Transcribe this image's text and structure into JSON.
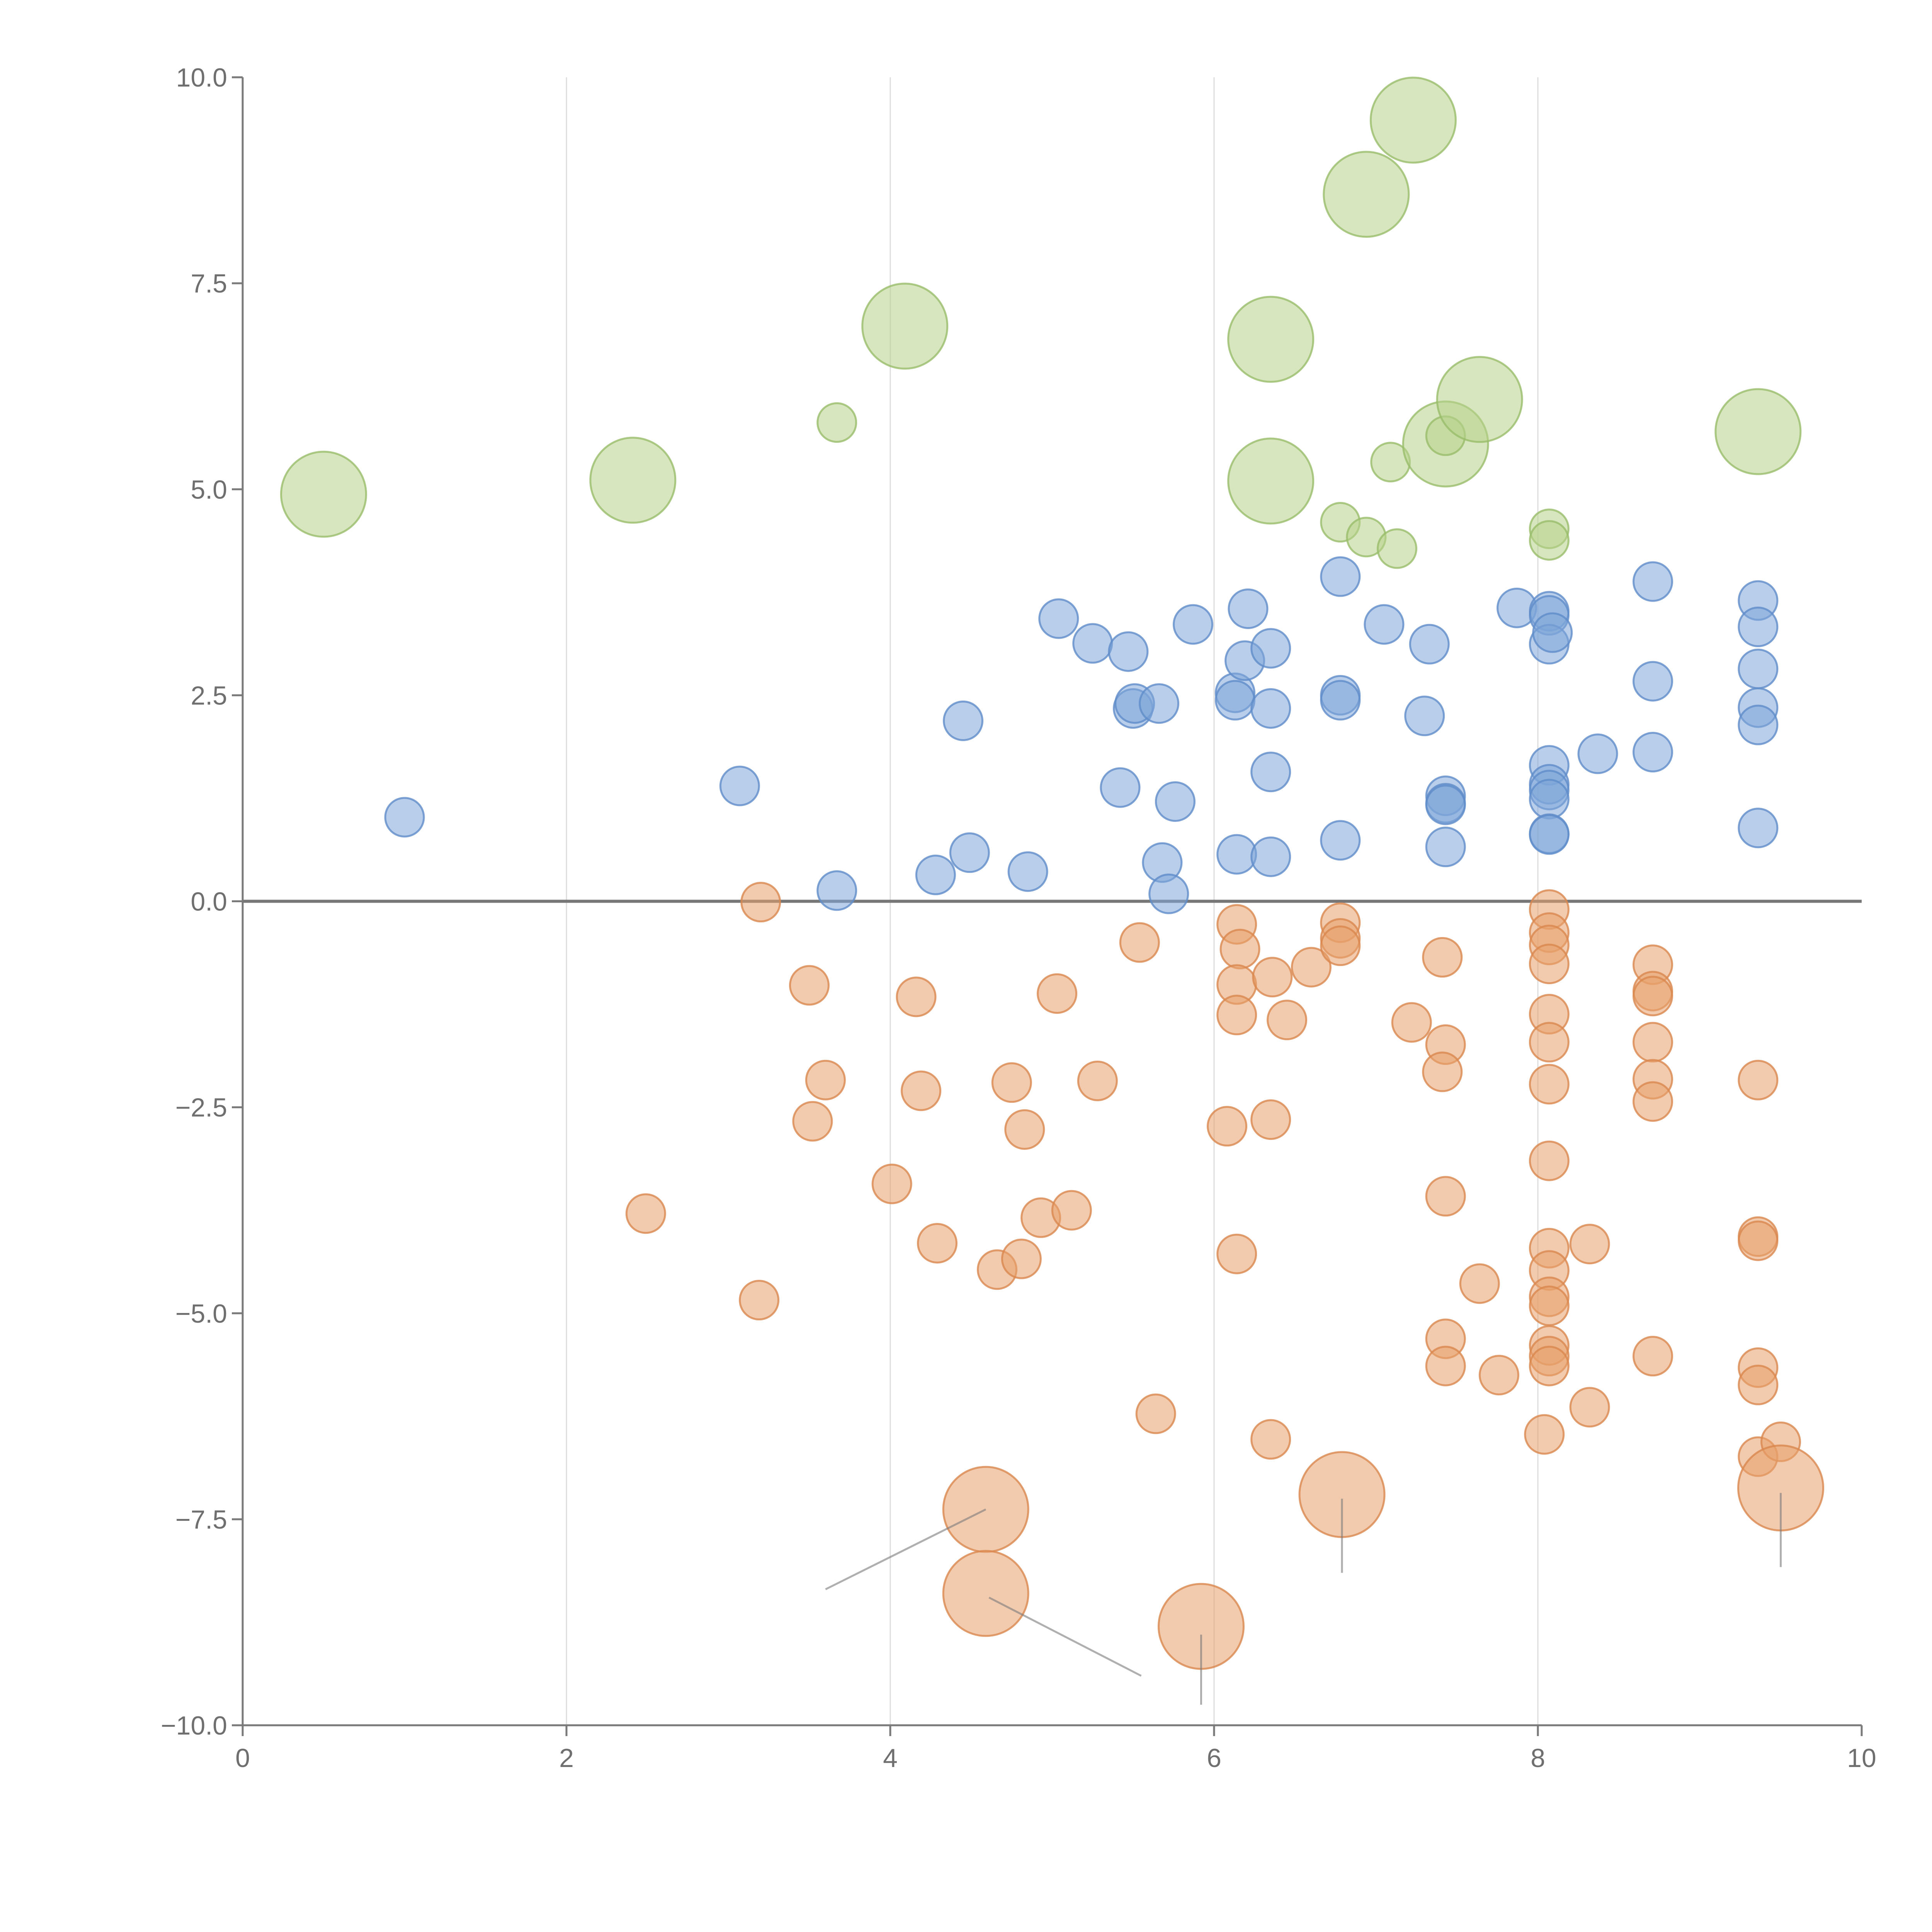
{
  "chart_data": {
    "type": "scatter",
    "title": "",
    "xlabel": "",
    "ylabel": "",
    "xlim": [
      0,
      10
    ],
    "ylim": [
      -10,
      10
    ],
    "xticks": [
      0,
      2,
      4,
      6,
      8,
      10
    ],
    "xtick_labels": [
      "0",
      "2",
      "4",
      "6",
      "8",
      "10"
    ],
    "yticks": [
      -10,
      -7.5,
      -5,
      -2.5,
      0,
      2.5,
      5,
      7.5,
      10
    ],
    "ytick_labels": [
      "−10.0",
      "−7.5",
      "−5.0",
      "−2.5",
      "0.0",
      "2.5",
      "5.0",
      "7.5",
      "10.0"
    ],
    "vertical_gridlines": [
      2,
      4,
      6,
      8
    ],
    "zero_line": 0,
    "colors": {
      "blue": "#7ea6d8",
      "blue_edge": "#5f8cc9",
      "orange": "#e8a06b",
      "orange_edge": "#d9874d",
      "green": "#b6d18b",
      "green_edge": "#98bd6a",
      "grid": "#dcdcdc",
      "axis": "#7a7a7a"
    },
    "bubble_sizes": {
      "small": 1,
      "medium": 1.6,
      "large": 2.2
    },
    "series": [
      {
        "name": "blue",
        "color_key": "blue",
        "points": [
          {
            "x": 1.0,
            "y": 1.02,
            "s": 1
          },
          {
            "x": 3.07,
            "y": 1.4,
            "s": 1
          },
          {
            "x": 3.67,
            "y": 0.13,
            "s": 1
          },
          {
            "x": 4.28,
            "y": 0.32,
            "s": 1
          },
          {
            "x": 4.45,
            "y": 2.19,
            "s": 1
          },
          {
            "x": 4.49,
            "y": 0.59,
            "s": 1
          },
          {
            "x": 4.85,
            "y": 0.36,
            "s": 1
          },
          {
            "x": 5.04,
            "y": 3.43,
            "s": 1
          },
          {
            "x": 5.25,
            "y": 3.13,
            "s": 1
          },
          {
            "x": 5.42,
            "y": 1.38,
            "s": 1
          },
          {
            "x": 5.47,
            "y": 3.03,
            "s": 1
          },
          {
            "x": 5.5,
            "y": 2.34,
            "s": 1
          },
          {
            "x": 5.51,
            "y": 2.4,
            "s": 1
          },
          {
            "x": 5.66,
            "y": 2.4,
            "s": 1
          },
          {
            "x": 5.68,
            "y": 0.47,
            "s": 1
          },
          {
            "x": 5.72,
            "y": 0.09,
            "s": 1
          },
          {
            "x": 5.76,
            "y": 1.21,
            "s": 1
          },
          {
            "x": 5.87,
            "y": 3.36,
            "s": 1
          },
          {
            "x": 6.13,
            "y": 2.53,
            "s": 1
          },
          {
            "x": 6.13,
            "y": 2.44,
            "s": 1
          },
          {
            "x": 6.14,
            "y": 0.57,
            "s": 1
          },
          {
            "x": 6.19,
            "y": 2.92,
            "s": 1
          },
          {
            "x": 6.21,
            "y": 3.55,
            "s": 1
          },
          {
            "x": 6.35,
            "y": 3.07,
            "s": 1
          },
          {
            "x": 6.35,
            "y": 2.34,
            "s": 1
          },
          {
            "x": 6.35,
            "y": 1.57,
            "s": 1
          },
          {
            "x": 6.35,
            "y": 0.54,
            "s": 1
          },
          {
            "x": 6.78,
            "y": 3.94,
            "s": 1
          },
          {
            "x": 6.78,
            "y": 2.5,
            "s": 1
          },
          {
            "x": 6.78,
            "y": 2.44,
            "s": 1
          },
          {
            "x": 6.78,
            "y": 0.74,
            "s": 1
          },
          {
            "x": 7.05,
            "y": 3.36,
            "s": 1
          },
          {
            "x": 7.3,
            "y": 2.25,
            "s": 1
          },
          {
            "x": 7.33,
            "y": 3.12,
            "s": 1
          },
          {
            "x": 7.43,
            "y": 1.28,
            "s": 1
          },
          {
            "x": 7.43,
            "y": 1.19,
            "s": 1
          },
          {
            "x": 7.43,
            "y": 1.17,
            "s": 1
          },
          {
            "x": 7.43,
            "y": 0.66,
            "s": 1
          },
          {
            "x": 7.87,
            "y": 3.56,
            "s": 1
          },
          {
            "x": 8.07,
            "y": 3.52,
            "s": 1
          },
          {
            "x": 8.07,
            "y": 3.47,
            "s": 1
          },
          {
            "x": 8.07,
            "y": 3.12,
            "s": 1
          },
          {
            "x": 8.09,
            "y": 3.26,
            "s": 1
          },
          {
            "x": 8.07,
            "y": 1.65,
            "s": 1
          },
          {
            "x": 8.07,
            "y": 1.42,
            "s": 1
          },
          {
            "x": 8.07,
            "y": 1.35,
            "s": 1
          },
          {
            "x": 8.07,
            "y": 1.24,
            "s": 1
          },
          {
            "x": 8.07,
            "y": 0.82,
            "s": 1
          },
          {
            "x": 8.07,
            "y": 0.81,
            "s": 1
          },
          {
            "x": 8.37,
            "y": 1.79,
            "s": 1
          },
          {
            "x": 8.71,
            "y": 3.88,
            "s": 1
          },
          {
            "x": 8.71,
            "y": 2.67,
            "s": 1
          },
          {
            "x": 8.71,
            "y": 1.81,
            "s": 1
          },
          {
            "x": 9.36,
            "y": 3.65,
            "s": 1
          },
          {
            "x": 9.36,
            "y": 3.33,
            "s": 1
          },
          {
            "x": 9.36,
            "y": 2.82,
            "s": 1
          },
          {
            "x": 9.36,
            "y": 2.35,
            "s": 1
          },
          {
            "x": 9.36,
            "y": 2.14,
            "s": 1
          },
          {
            "x": 9.36,
            "y": 0.89,
            "s": 1
          }
        ]
      },
      {
        "name": "orange",
        "color_key": "orange",
        "points": [
          {
            "x": 3.2,
            "y": -0.01,
            "s": 1
          },
          {
            "x": 3.5,
            "y": -1.02,
            "s": 1
          },
          {
            "x": 3.6,
            "y": -2.17,
            "s": 1
          },
          {
            "x": 3.52,
            "y": -2.67,
            "s": 1
          },
          {
            "x": 2.49,
            "y": -3.79,
            "s": 1
          },
          {
            "x": 3.19,
            "y": -4.84,
            "s": 1
          },
          {
            "x": 4.01,
            "y": -3.43,
            "s": 1
          },
          {
            "x": 4.16,
            "y": -1.16,
            "s": 1
          },
          {
            "x": 4.19,
            "y": -2.3,
            "s": 1
          },
          {
            "x": 4.29,
            "y": -4.15,
            "s": 1
          },
          {
            "x": 4.66,
            "y": -4.47,
            "s": 1
          },
          {
            "x": 4.75,
            "y": -2.2,
            "s": 1
          },
          {
            "x": 4.81,
            "y": -4.34,
            "s": 1
          },
          {
            "x": 4.83,
            "y": -2.77,
            "s": 1
          },
          {
            "x": 4.93,
            "y": -3.84,
            "s": 1
          },
          {
            "x": 5.03,
            "y": -1.12,
            "s": 1
          },
          {
            "x": 5.12,
            "y": -3.75,
            "s": 1
          },
          {
            "x": 5.28,
            "y": -2.18,
            "s": 1
          },
          {
            "x": 5.54,
            "y": -0.5,
            "s": 1
          },
          {
            "x": 5.64,
            "y": -6.22,
            "s": 1
          },
          {
            "x": 6.08,
            "y": -2.73,
            "s": 1
          },
          {
            "x": 6.14,
            "y": -0.28,
            "s": 1
          },
          {
            "x": 6.16,
            "y": -0.58,
            "s": 1
          },
          {
            "x": 6.14,
            "y": -1.01,
            "s": 1
          },
          {
            "x": 6.14,
            "y": -1.38,
            "s": 1
          },
          {
            "x": 6.14,
            "y": -4.28,
            "s": 1
          },
          {
            "x": 6.36,
            "y": -0.92,
            "s": 1
          },
          {
            "x": 6.35,
            "y": -2.65,
            "s": 1
          },
          {
            "x": 6.35,
            "y": -6.53,
            "s": 1
          },
          {
            "x": 6.45,
            "y": -1.44,
            "s": 1
          },
          {
            "x": 6.6,
            "y": -0.8,
            "s": 1
          },
          {
            "x": 6.78,
            "y": -0.26,
            "s": 1
          },
          {
            "x": 6.78,
            "y": -0.45,
            "s": 1
          },
          {
            "x": 6.78,
            "y": -0.54,
            "s": 1
          },
          {
            "x": 7.22,
            "y": -1.47,
            "s": 1
          },
          {
            "x": 7.41,
            "y": -0.68,
            "s": 1
          },
          {
            "x": 7.43,
            "y": -1.74,
            "s": 1
          },
          {
            "x": 7.41,
            "y": -2.07,
            "s": 1
          },
          {
            "x": 7.43,
            "y": -3.58,
            "s": 1
          },
          {
            "x": 7.43,
            "y": -5.31,
            "s": 1
          },
          {
            "x": 7.43,
            "y": -5.64,
            "s": 1
          },
          {
            "x": 7.64,
            "y": -4.64,
            "s": 1
          },
          {
            "x": 7.76,
            "y": -5.75,
            "s": 1
          },
          {
            "x": 8.07,
            "y": -0.1,
            "s": 1
          },
          {
            "x": 8.07,
            "y": -0.38,
            "s": 1
          },
          {
            "x": 8.07,
            "y": -0.53,
            "s": 1
          },
          {
            "x": 8.07,
            "y": -0.76,
            "s": 1
          },
          {
            "x": 8.07,
            "y": -1.37,
            "s": 1
          },
          {
            "x": 8.07,
            "y": -1.71,
            "s": 1
          },
          {
            "x": 8.07,
            "y": -2.22,
            "s": 1
          },
          {
            "x": 8.07,
            "y": -3.15,
            "s": 1
          },
          {
            "x": 8.07,
            "y": -4.21,
            "s": 1
          },
          {
            "x": 8.07,
            "y": -4.48,
            "s": 1
          },
          {
            "x": 8.07,
            "y": -4.8,
            "s": 1
          },
          {
            "x": 8.07,
            "y": -4.91,
            "s": 1
          },
          {
            "x": 8.07,
            "y": -5.39,
            "s": 1
          },
          {
            "x": 8.07,
            "y": -5.52,
            "s": 1
          },
          {
            "x": 8.07,
            "y": -5.64,
            "s": 1
          },
          {
            "x": 8.04,
            "y": -6.47,
            "s": 1
          },
          {
            "x": 8.32,
            "y": -4.16,
            "s": 1
          },
          {
            "x": 8.32,
            "y": -6.14,
            "s": 1
          },
          {
            "x": 8.71,
            "y": -0.77,
            "s": 1
          },
          {
            "x": 8.71,
            "y": -1.09,
            "s": 1
          },
          {
            "x": 8.71,
            "y": -1.15,
            "s": 1
          },
          {
            "x": 8.71,
            "y": -1.71,
            "s": 1
          },
          {
            "x": 8.71,
            "y": -2.16,
            "s": 1
          },
          {
            "x": 8.71,
            "y": -2.43,
            "s": 1
          },
          {
            "x": 8.71,
            "y": -5.52,
            "s": 1
          },
          {
            "x": 9.36,
            "y": -2.17,
            "s": 1
          },
          {
            "x": 9.36,
            "y": -4.07,
            "s": 1
          },
          {
            "x": 9.36,
            "y": -4.12,
            "s": 1
          },
          {
            "x": 9.36,
            "y": -5.66,
            "s": 1
          },
          {
            "x": 9.36,
            "y": -5.87,
            "s": 1
          },
          {
            "x": 9.36,
            "y": -6.74,
            "s": 1
          },
          {
            "x": 9.5,
            "y": -6.56,
            "s": 1
          },
          {
            "x": 4.59,
            "y": -7.38,
            "s": 2.2
          },
          {
            "x": 4.59,
            "y": -8.4,
            "s": 2.2
          },
          {
            "x": 5.92,
            "y": -8.8,
            "s": 2.2
          },
          {
            "x": 6.79,
            "y": -7.2,
            "s": 2.2
          },
          {
            "x": 9.5,
            "y": -7.12,
            "s": 2.2
          }
        ]
      },
      {
        "name": "green",
        "color_key": "green",
        "points": [
          {
            "x": 0.5,
            "y": 4.94,
            "s": 2.2
          },
          {
            "x": 2.41,
            "y": 5.11,
            "s": 2.2
          },
          {
            "x": 3.67,
            "y": 5.81,
            "s": 1
          },
          {
            "x": 4.09,
            "y": 6.98,
            "s": 2.2
          },
          {
            "x": 6.35,
            "y": 6.82,
            "s": 2.2
          },
          {
            "x": 6.35,
            "y": 5.1,
            "s": 2.2
          },
          {
            "x": 6.78,
            "y": 4.6,
            "s": 1
          },
          {
            "x": 6.94,
            "y": 4.42,
            "s": 1
          },
          {
            "x": 6.94,
            "y": 8.58,
            "s": 2.2
          },
          {
            "x": 7.09,
            "y": 5.33,
            "s": 1
          },
          {
            "x": 7.13,
            "y": 4.28,
            "s": 1
          },
          {
            "x": 7.23,
            "y": 9.48,
            "s": 2.2
          },
          {
            "x": 7.43,
            "y": 5.55,
            "s": 2.2
          },
          {
            "x": 7.43,
            "y": 5.65,
            "s": 1
          },
          {
            "x": 7.64,
            "y": 6.09,
            "s": 2.2
          },
          {
            "x": 8.07,
            "y": 4.52,
            "s": 1
          },
          {
            "x": 8.07,
            "y": 4.38,
            "s": 1
          },
          {
            "x": 9.36,
            "y": 5.7,
            "s": 2.2
          }
        ]
      }
    ],
    "leader_lines": [
      {
        "x1": 4.59,
        "y1": -7.38,
        "x2": 3.6,
        "y2": -8.35,
        "color_key": "axis"
      },
      {
        "x1": 4.61,
        "y1": -8.45,
        "x2": 5.55,
        "y2": -9.4,
        "color_key": "axis"
      },
      {
        "x1": 5.92,
        "y1": -8.9,
        "x2": 5.92,
        "y2": -9.75,
        "color_key": "axis"
      },
      {
        "x1": 6.79,
        "y1": -7.25,
        "x2": 6.79,
        "y2": -8.15,
        "color_key": "axis"
      },
      {
        "x1": 9.5,
        "y1": -7.18,
        "x2": 9.5,
        "y2": -8.08,
        "color_key": "axis"
      }
    ]
  }
}
